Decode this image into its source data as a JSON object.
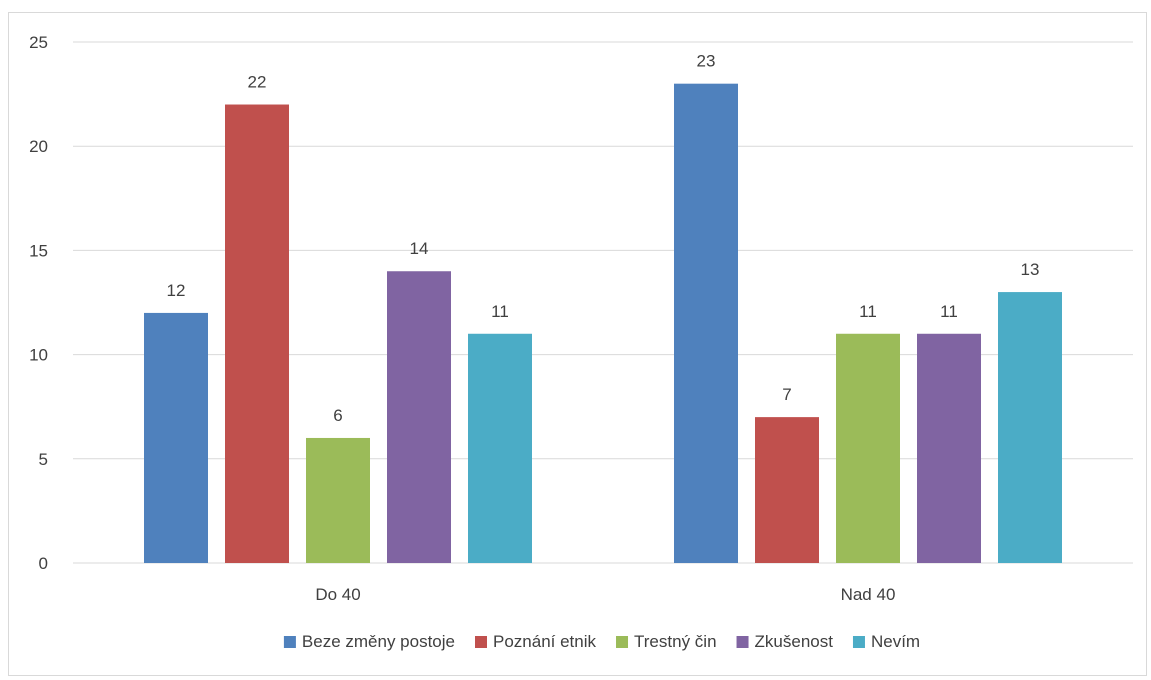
{
  "chart_data": {
    "type": "bar",
    "categories": [
      "Do 40",
      "Nad 40"
    ],
    "series": [
      {
        "name": "Beze změny postoje",
        "color": "#4F81BD",
        "values": [
          12,
          23
        ]
      },
      {
        "name": "Poznání etnik",
        "color": "#C0504D",
        "values": [
          22,
          7
        ]
      },
      {
        "name": "Trestný čin",
        "color": "#9BBB59",
        "values": [
          6,
          11
        ]
      },
      {
        "name": "Zkušenost",
        "color": "#8064A2",
        "values": [
          14,
          11
        ]
      },
      {
        "name": "Nevím",
        "color": "#4BACC6",
        "values": [
          11,
          13
        ]
      }
    ],
    "yticks": [
      0,
      5,
      10,
      15,
      20,
      25
    ],
    "ylim": [
      0,
      25
    ],
    "grid": true,
    "legend": "bottom"
  }
}
